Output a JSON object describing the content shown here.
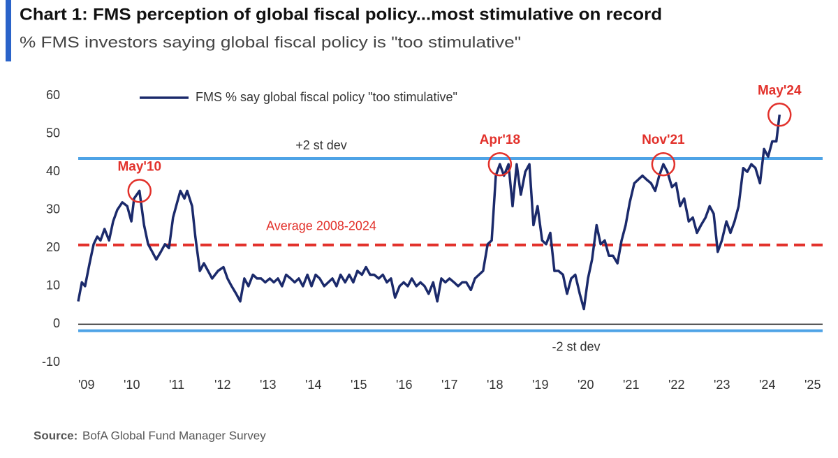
{
  "chart_data": {
    "type": "line",
    "title": "Chart 1: FMS perception of global fiscal policy...most stimulative on record",
    "subtitle": "% FMS investors saying global fiscal policy is \"too stimulative\"",
    "source_label": "Source:",
    "source": "BofA Global Fund Manager Survey",
    "xlim": [
      2009,
      2025.4
    ],
    "xticks": [
      {
        "value": 2009,
        "label": "'09"
      },
      {
        "value": 2010,
        "label": "'10"
      },
      {
        "value": 2011,
        "label": "'11"
      },
      {
        "value": 2012,
        "label": "'12"
      },
      {
        "value": 2013,
        "label": "'13"
      },
      {
        "value": 2014,
        "label": "'14"
      },
      {
        "value": 2015,
        "label": "'15"
      },
      {
        "value": 2016,
        "label": "'16"
      },
      {
        "value": 2017,
        "label": "'17"
      },
      {
        "value": 2018,
        "label": "'18"
      },
      {
        "value": 2019,
        "label": "'19"
      },
      {
        "value": 2020,
        "label": "'20"
      },
      {
        "value": 2021,
        "label": "'21"
      },
      {
        "value": 2022,
        "label": "'22"
      },
      {
        "value": 2023,
        "label": "'23"
      },
      {
        "value": 2024,
        "label": "'24"
      },
      {
        "value": 2025,
        "label": "'25"
      }
    ],
    "ylim": [
      -10,
      60
    ],
    "yticks": [
      -10,
      0,
      10,
      20,
      30,
      40,
      50,
      60
    ],
    "x": [
      2009.0,
      2009.08,
      2009.15,
      2009.25,
      2009.34,
      2009.42,
      2009.49,
      2009.58,
      2009.68,
      2009.77,
      2009.86,
      2009.97,
      2010.08,
      2010.17,
      2010.23,
      2010.35,
      2010.45,
      2010.54,
      2010.63,
      2010.72,
      2010.82,
      2010.91,
      2011.0,
      2011.09,
      2011.18,
      2011.25,
      2011.34,
      2011.4,
      2011.51,
      2011.58,
      2011.68,
      2011.77,
      2011.86,
      2011.95,
      2012.08,
      2012.2,
      2012.29,
      2012.38,
      2012.48,
      2012.57,
      2012.66,
      2012.75,
      2012.85,
      2012.94,
      2013.03,
      2013.12,
      2013.22,
      2013.31,
      2013.4,
      2013.49,
      2013.58,
      2013.68,
      2013.77,
      2013.86,
      2013.95,
      2014.05,
      2014.14,
      2014.23,
      2014.32,
      2014.42,
      2014.51,
      2014.6,
      2014.69,
      2014.78,
      2014.88,
      2014.97,
      2015.06,
      2015.15,
      2015.25,
      2015.34,
      2015.43,
      2015.52,
      2015.62,
      2015.71,
      2015.8,
      2015.89,
      2015.98,
      2016.08,
      2016.17,
      2016.26,
      2016.35,
      2016.45,
      2016.54,
      2016.63,
      2016.72,
      2016.82,
      2016.91,
      2017.0,
      2017.09,
      2017.18,
      2017.28,
      2017.37,
      2017.46,
      2017.55,
      2017.65,
      2017.74,
      2017.83,
      2017.92,
      2018.02,
      2018.11,
      2018.2,
      2018.29,
      2018.38,
      2018.48,
      2018.57,
      2018.66,
      2018.75,
      2018.85,
      2018.94,
      2019.03,
      2019.12,
      2019.22,
      2019.31,
      2019.4,
      2019.49,
      2019.58,
      2019.68,
      2019.77,
      2019.86,
      2019.95,
      2020.05,
      2020.14,
      2020.23,
      2020.32,
      2020.42,
      2020.51,
      2020.6,
      2020.69,
      2020.78,
      2020.88,
      2020.97,
      2021.06,
      2021.15,
      2021.25,
      2021.34,
      2021.43,
      2021.52,
      2021.62,
      2021.71,
      2021.8,
      2021.89,
      2021.98,
      2022.08,
      2022.17,
      2022.26,
      2022.35,
      2022.45,
      2022.54,
      2022.63,
      2022.72,
      2022.82,
      2022.91,
      2023.0,
      2023.09,
      2023.18,
      2023.28,
      2023.37,
      2023.46,
      2023.55,
      2023.65,
      2023.74,
      2023.83,
      2023.92,
      2024.02,
      2024.11,
      2024.2,
      2024.29,
      2024.38,
      2024.45
    ],
    "series": [
      {
        "name": "FMS % say global fiscal policy \"too stimulative\"",
        "color": "#1b2a6b",
        "values": [
          6,
          11,
          10,
          16,
          21,
          23,
          22,
          25,
          22,
          27,
          30,
          32,
          31,
          27,
          33,
          35,
          26,
          21,
          19,
          17,
          19,
          21,
          20,
          28,
          32,
          35,
          33,
          35,
          31,
          23,
          14,
          16,
          14,
          12,
          14,
          15,
          12,
          10,
          8,
          6,
          12,
          10,
          13,
          12,
          12,
          11,
          12,
          11,
          12,
          10,
          13,
          12,
          11,
          12,
          10,
          13,
          10,
          13,
          12,
          10,
          11,
          12,
          10,
          13,
          11,
          13,
          11,
          14,
          13,
          15,
          13,
          13,
          12,
          13,
          11,
          12,
          7,
          10,
          11,
          10,
          12,
          10,
          11,
          10,
          8,
          11,
          6,
          12,
          11,
          12,
          11,
          10,
          11,
          11,
          9,
          12,
          13,
          14,
          21,
          22,
          39,
          42,
          39,
          42,
          31,
          42,
          34,
          40,
          42,
          26,
          31,
          22,
          21,
          24,
          14,
          14,
          13,
          8,
          12,
          13,
          8,
          4,
          12,
          17,
          26,
          21,
          22,
          18,
          18,
          16,
          22,
          26,
          32,
          37,
          38,
          39,
          38,
          37,
          35,
          39,
          42,
          40,
          36,
          37,
          31,
          33,
          27,
          28,
          24,
          26,
          28,
          31,
          29,
          19,
          22,
          27,
          24,
          27,
          31,
          41,
          40,
          42,
          41,
          37,
          46,
          44,
          48,
          48,
          55
        ]
      }
    ],
    "reference_lines": [
      {
        "label": "+2 st dev",
        "value": 43.5,
        "color": "#4ea3e6",
        "style": "solid"
      },
      {
        "label": "Average 2008-2024",
        "value": 20.8,
        "color": "#e2312b",
        "style": "dashed"
      },
      {
        "label": "-2 st dev",
        "value": -1.7,
        "color": "#4ea3e6",
        "style": "solid"
      }
    ],
    "annotations": [
      {
        "text": "May'10",
        "x": 2010.35,
        "y": 35
      },
      {
        "text": "Apr'18",
        "x": 2018.29,
        "y": 42
      },
      {
        "text": "Nov'21",
        "x": 2021.89,
        "y": 42
      },
      {
        "text": "May'24",
        "x": 2024.45,
        "y": 55
      }
    ],
    "annotation_color": "#e2312b",
    "legend": "top-left"
  }
}
